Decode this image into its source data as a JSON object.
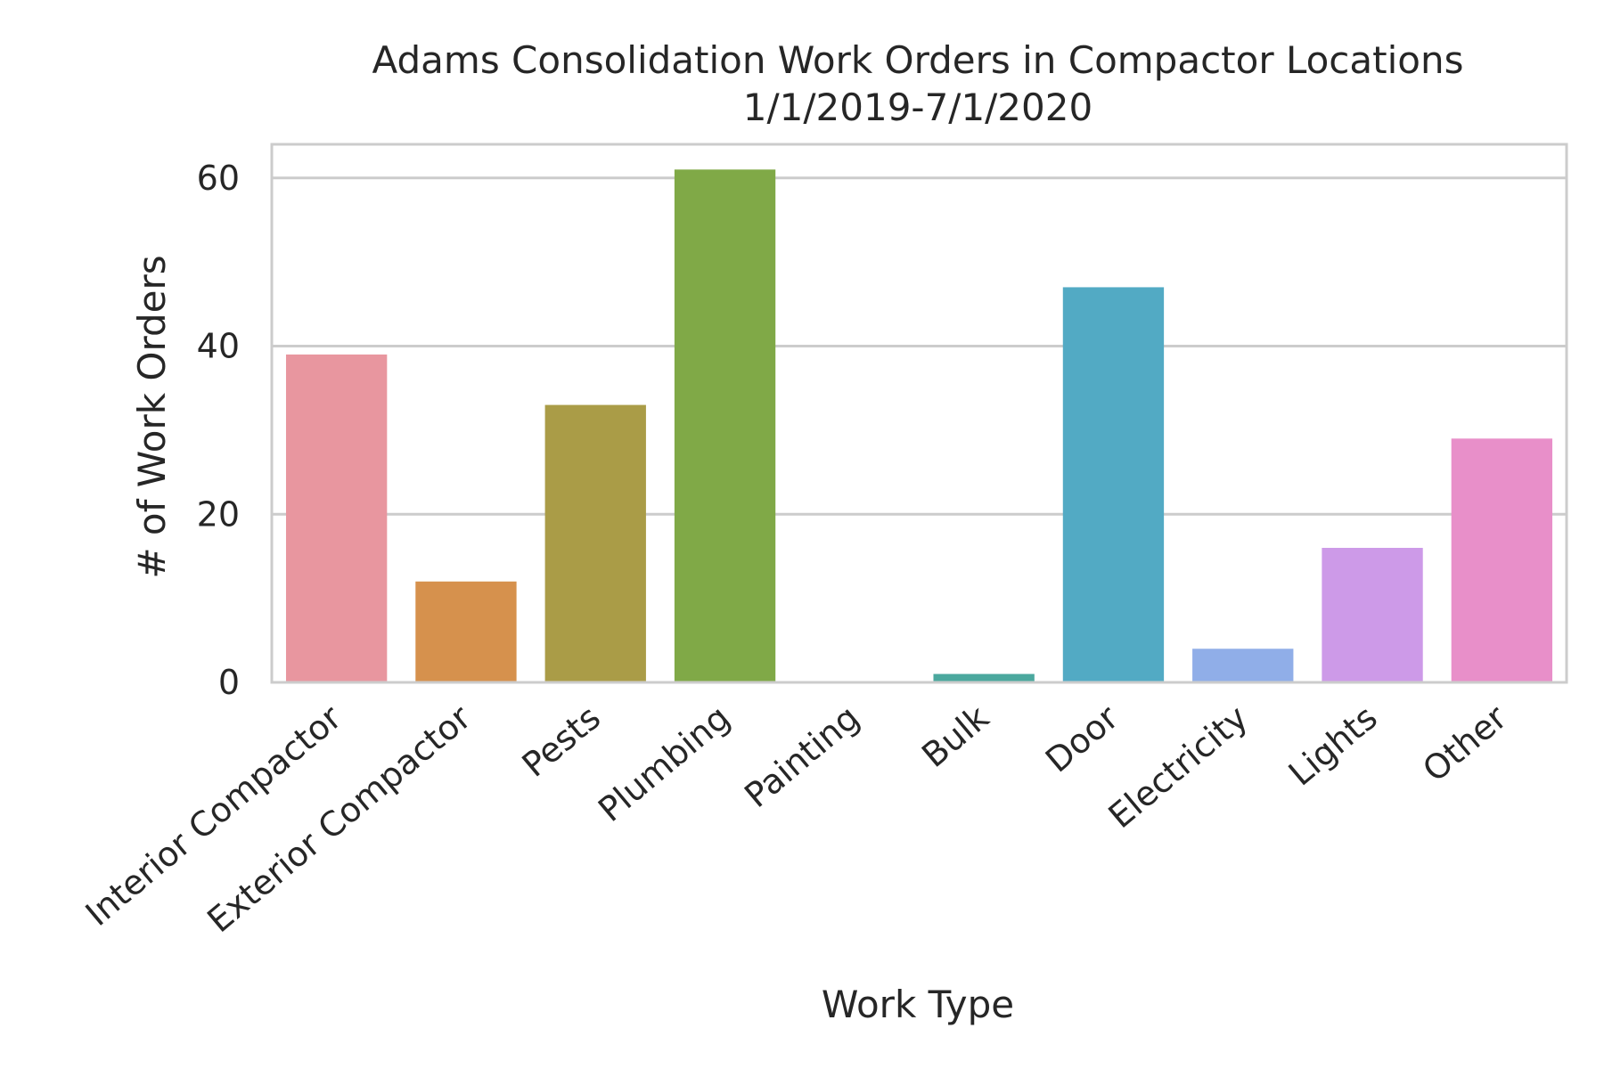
{
  "chart_data": {
    "type": "bar",
    "title": "Adams Consolidation Work Orders in Compactor Locations",
    "subtitle": "1/1/2019-7/1/2020",
    "xlabel": "Work Type",
    "ylabel": "# of Work Orders",
    "categories": [
      "Interior Compactor",
      "Exterior Compactor",
      "Pests",
      "Plumbing",
      "Painting",
      "Bulk",
      "Door",
      "Electricity",
      "Lights",
      "Other"
    ],
    "values": [
      39,
      12,
      33,
      61,
      0,
      1,
      47,
      4,
      16,
      29
    ],
    "colors": [
      "#e8969f",
      "#d6914d",
      "#aa9c47",
      "#80a947",
      "#4faa7f",
      "#4ba89e",
      "#52aac4",
      "#90aee8",
      "#cd9ae8",
      "#e88fc9"
    ],
    "ylim": [
      0,
      64
    ],
    "yticks": [
      0,
      20,
      40,
      60
    ],
    "grid": true,
    "x_tick_rotation_deg": 40
  }
}
